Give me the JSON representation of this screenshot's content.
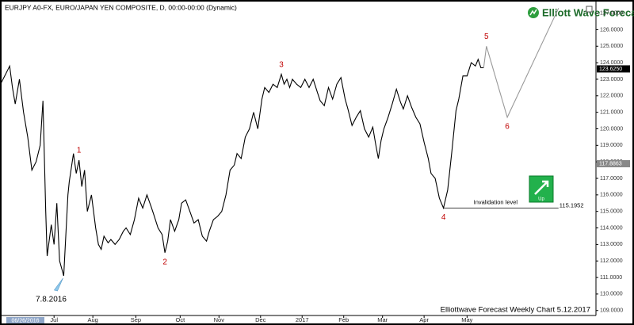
{
  "chart_data": {
    "type": "line",
    "title": "EURJPY A0-FX, EURO/JAPAN YEN COMPOSITE, D, 00:00-00:00 (Dynamic)",
    "brand": "Elliott Wave Forecast",
    "footer": "Elliottwave Forecast Weekly Chart 5.12.2017",
    "cursor_date": "06/26/2016",
    "low_note": {
      "text": "7.8.2016",
      "x": 46,
      "y": 111.1
    },
    "signal": "Up",
    "xlim": [
      0,
      430
    ],
    "ylim": [
      108.7,
      127.7
    ],
    "xticks": [
      {
        "value": 39,
        "label": "Jul"
      },
      {
        "value": 67,
        "label": "Aug"
      },
      {
        "value": 98,
        "label": "Sep"
      },
      {
        "value": 130,
        "label": "Oct"
      },
      {
        "value": 158,
        "label": "Nov"
      },
      {
        "value": 188,
        "label": "Dec"
      },
      {
        "value": 218,
        "label": "2017"
      },
      {
        "value": 248,
        "label": "Feb"
      },
      {
        "value": 276,
        "label": "Mar"
      },
      {
        "value": 306,
        "label": "Apr"
      },
      {
        "value": 337,
        "label": "May"
      }
    ],
    "yticks": [
      {
        "value": 109,
        "label": "109.0000"
      },
      {
        "value": 110,
        "label": "110.0000"
      },
      {
        "value": 111,
        "label": "111.0000"
      },
      {
        "value": 112,
        "label": "112.0000"
      },
      {
        "value": 113,
        "label": "113.0000"
      },
      {
        "value": 114,
        "label": "114.0000"
      },
      {
        "value": 115,
        "label": "115.0000"
      },
      {
        "value": 116,
        "label": "116.0000"
      },
      {
        "value": 117,
        "label": "117.0000"
      },
      {
        "value": 118,
        "label": "118.0000"
      },
      {
        "value": 119,
        "label": "119.0000"
      },
      {
        "value": 120,
        "label": "120.0000"
      },
      {
        "value": 121,
        "label": "121.0000"
      },
      {
        "value": 122,
        "label": "122.0000"
      },
      {
        "value": 123,
        "label": "123.0000"
      },
      {
        "value": 124,
        "label": "124.0000"
      },
      {
        "value": 125,
        "label": "125.0000"
      },
      {
        "value": 126,
        "label": "126.0000"
      },
      {
        "value": 127,
        "label": "127.0000"
      }
    ],
    "price_tags": [
      {
        "value": 123.625,
        "label": "123.6250",
        "color": "#000000"
      },
      {
        "value": 117.8863,
        "label": "117.8863",
        "color": "#888888"
      }
    ],
    "series": [
      {
        "color": "#000000",
        "x": [
          1,
          4,
          7,
          9,
          11,
          14,
          17,
          20,
          23,
          26,
          29,
          31,
          33,
          34,
          37,
          39,
          41,
          43,
          46,
          49,
          50,
          53,
          55,
          57,
          59,
          61,
          63,
          66,
          69,
          71,
          73,
          75,
          78,
          80,
          83,
          86,
          89,
          91,
          94,
          97,
          100,
          103,
          106,
          109,
          111,
          114,
          117,
          119,
          121,
          123,
          126,
          129,
          131,
          134,
          137,
          140,
          143,
          146,
          149,
          151,
          154,
          157,
          160,
          163,
          166,
          169,
          171,
          174,
          177,
          180,
          183,
          186,
          189,
          191,
          194,
          197,
          200,
          203,
          205,
          207,
          209,
          211,
          214,
          217,
          220,
          223,
          226,
          229,
          231,
          234,
          237,
          240,
          243,
          246,
          249,
          251,
          254,
          257,
          260,
          263,
          266,
          269,
          271,
          273,
          275,
          277,
          280,
          283,
          286,
          289,
          291,
          294,
          297,
          300,
          303,
          306,
          309,
          311,
          314,
          317,
          320,
          323,
          326,
          329,
          331,
          334,
          337,
          340,
          343,
          345,
          347,
          349
        ],
        "values": [
          122.8,
          123.3,
          123.8,
          122.5,
          121.5,
          123,
          121,
          119.5,
          117.5,
          118,
          119,
          121.7,
          115,
          112.3,
          114.2,
          113,
          115.5,
          112,
          111.1,
          116,
          116.8,
          118.5,
          117.3,
          118.1,
          116.5,
          117.5,
          115,
          116,
          114,
          113,
          112.7,
          113.5,
          113.1,
          113.3,
          113,
          113.3,
          113.8,
          114,
          113.6,
          114.5,
          115.8,
          115.2,
          116,
          115.3,
          114.8,
          114,
          113.6,
          112.5,
          113.2,
          114.5,
          113.8,
          114.5,
          115.5,
          115.7,
          115,
          114.3,
          114.5,
          113.5,
          113.2,
          113.8,
          114.5,
          114.7,
          115,
          116,
          117.5,
          117.8,
          118.5,
          118.2,
          119.5,
          120,
          121,
          120,
          121.8,
          122.5,
          122.2,
          122.7,
          122.5,
          123.3,
          122.7,
          123,
          122.5,
          123,
          122.7,
          122.5,
          123,
          122.5,
          123,
          122.2,
          121.7,
          121.4,
          122.5,
          121.8,
          122.7,
          123.1,
          121.8,
          121.2,
          120.2,
          120.7,
          121.1,
          120,
          119.5,
          120.1,
          119.1,
          118.2,
          119.3,
          120,
          120.7,
          121.5,
          122.4,
          121.6,
          121.2,
          122,
          121.3,
          120.7,
          120.3,
          119.2,
          118.2,
          117.3,
          117,
          115.8,
          115.2,
          116.3,
          118.6,
          121.1,
          121.8,
          123.2,
          123.2,
          124,
          123.8,
          124.2,
          123.7,
          123.7
        ]
      },
      {
        "color": "#999999",
        "x": [
          349,
          351,
          366,
          403
        ],
        "values": [
          123.7,
          125,
          120.7,
          127.3
        ]
      }
    ],
    "wave_labels": [
      {
        "text": "1",
        "x": 57,
        "y": 118.1
      },
      {
        "text": "2",
        "x": 119,
        "y": 112.5
      },
      {
        "text": "3",
        "x": 203,
        "y": 123.3
      },
      {
        "text": "4",
        "x": 320,
        "y": 115.2
      },
      {
        "text": "5",
        "x": 351,
        "y": 125
      },
      {
        "text": "6",
        "x": 366,
        "y": 120.7
      }
    ],
    "invalidation": {
      "label": "Invalidation level",
      "value": 115.1952,
      "x": [
        320,
        403
      ]
    }
  }
}
